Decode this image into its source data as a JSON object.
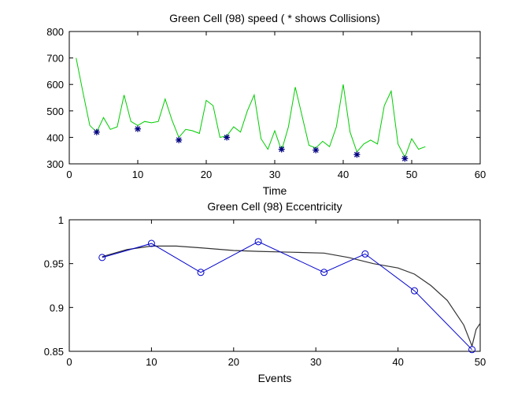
{
  "chart_data": [
    {
      "type": "line",
      "title": "Green Cell (98) speed ( * shows Collisions)",
      "xlabel": "Time",
      "ylabel": "",
      "xlim": [
        0,
        60
      ],
      "ylim": [
        300,
        800
      ],
      "xticks": [
        0,
        10,
        20,
        30,
        40,
        50,
        60
      ],
      "yticks": [
        300,
        400,
        500,
        600,
        700,
        800
      ],
      "grid": false,
      "colors": {
        "speed": "#00cc00",
        "collision": "#000080"
      },
      "series": [
        {
          "type": "line",
          "x": [
            1,
            2,
            3,
            4,
            5,
            6,
            7,
            8,
            9,
            10,
            11,
            12,
            13,
            14,
            15,
            16,
            17,
            18,
            19,
            20,
            21,
            22,
            23,
            24,
            25,
            26,
            27,
            28,
            29,
            30,
            31,
            32,
            33,
            34,
            35,
            36,
            37,
            38,
            39,
            40,
            41,
            42,
            43,
            44,
            45,
            46,
            47,
            48,
            49,
            50,
            51,
            52
          ],
          "y": [
            700,
            570,
            445,
            420,
            475,
            430,
            440,
            560,
            460,
            445,
            460,
            455,
            460,
            545,
            465,
            400,
            430,
            425,
            415,
            540,
            520,
            400,
            405,
            440,
            420,
            500,
            560,
            395,
            355,
            425,
            350,
            440,
            590,
            480,
            370,
            360,
            385,
            365,
            440,
            600,
            420,
            345,
            375,
            390,
            375,
            520,
            575,
            375,
            325,
            395,
            355,
            365
          ]
        },
        {
          "type": "scatter",
          "x": [
            4,
            10,
            16,
            23,
            31,
            36,
            42,
            49
          ],
          "y": [
            420,
            432,
            390,
            400,
            355,
            352,
            335,
            320
          ]
        }
      ]
    },
    {
      "type": "line",
      "title": "Green Cell (98) Eccentricity",
      "xlabel": "Events",
      "ylabel": "",
      "xlim": [
        0,
        50
      ],
      "ylim": [
        0.85,
        1
      ],
      "xticks": [
        0,
        10,
        20,
        30,
        40,
        50
      ],
      "yticks": [
        0.85,
        0.9,
        0.95,
        1
      ],
      "ytick_labels": [
        "0.85",
        "0.9",
        "0.95",
        "1"
      ],
      "grid": false,
      "colors": {
        "eccentricity": "#0000cc",
        "smooth": "#333333"
      },
      "series": [
        {
          "type": "line",
          "markers": "circle",
          "x": [
            4,
            10,
            16,
            23,
            31,
            36,
            42,
            49
          ],
          "y": [
            0.957,
            0.973,
            0.94,
            0.975,
            0.94,
            0.961,
            0.919,
            0.852
          ]
        },
        {
          "type": "line",
          "x": [
            4,
            7,
            10,
            13,
            16,
            20,
            23,
            27,
            31,
            34,
            37,
            40,
            42,
            44,
            46,
            48,
            49,
            49.5,
            50
          ],
          "y": [
            0.958,
            0.966,
            0.97,
            0.97,
            0.968,
            0.965,
            0.964,
            0.963,
            0.962,
            0.957,
            0.95,
            0.945,
            0.938,
            0.925,
            0.908,
            0.88,
            0.856,
            0.875,
            0.882
          ]
        }
      ]
    }
  ]
}
